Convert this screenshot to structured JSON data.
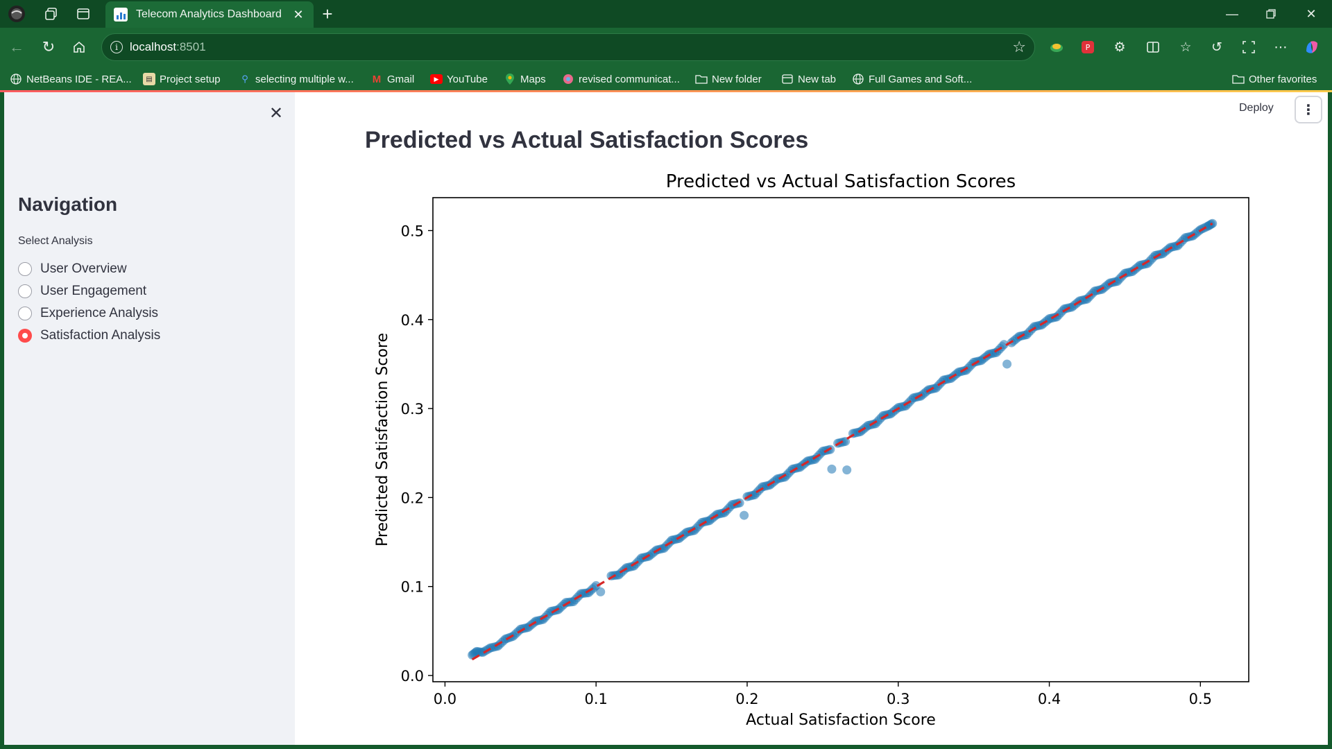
{
  "browser": {
    "tab_title": "Telecom Analytics Dashboard",
    "address_host": "localhost",
    "address_port": ":8501",
    "bookmarks": [
      {
        "label": "NetBeans IDE - REA...",
        "icon": "globe-icon"
      },
      {
        "label": "Project setup",
        "icon": "project-icon"
      },
      {
        "label": "selecting multiple w...",
        "icon": "search-icon"
      },
      {
        "label": "Gmail",
        "icon": "gmail-icon"
      },
      {
        "label": "YouTube",
        "icon": "youtube-icon"
      },
      {
        "label": "Maps",
        "icon": "maps-icon"
      },
      {
        "label": "revised communicat...",
        "icon": "web-icon"
      },
      {
        "label": "New folder",
        "icon": "folder-icon"
      },
      {
        "label": "New tab",
        "icon": "new-tab-icon"
      },
      {
        "label": "Full Games and Soft...",
        "icon": "globe-icon"
      }
    ],
    "other_favorites": "Other favorites"
  },
  "sidebar": {
    "heading": "Navigation",
    "select_label": "Select Analysis",
    "options": [
      {
        "label": "User Overview",
        "selected": false
      },
      {
        "label": "User Engagement",
        "selected": false
      },
      {
        "label": "Experience Analysis",
        "selected": false
      },
      {
        "label": "Satisfaction Analysis",
        "selected": true
      }
    ],
    "accent_color": "#ff4b4b"
  },
  "header": {
    "deploy_label": "Deploy"
  },
  "main": {
    "title": "Predicted vs Actual Satisfaction Scores"
  },
  "chart_data": {
    "type": "scatter",
    "title": "Predicted vs Actual Satisfaction Scores",
    "xlabel": "Actual Satisfaction Score",
    "ylabel": "Predicted Satisfaction Score",
    "xlim": [
      -0.008,
      0.532
    ],
    "ylim": [
      -0.007,
      0.537
    ],
    "xticks": [
      0.0,
      0.1,
      0.2,
      0.3,
      0.4,
      0.5
    ],
    "xtick_labels": [
      "0.0",
      "0.1",
      "0.2",
      "0.3",
      "0.4",
      "0.5"
    ],
    "yticks": [
      0.0,
      0.1,
      0.2,
      0.3,
      0.4,
      0.5
    ],
    "ytick_labels": [
      "0.0",
      "0.1",
      "0.2",
      "0.3",
      "0.4",
      "0.5"
    ],
    "grid": false,
    "point_color": "#1f77b4",
    "reference_line": {
      "style": "dashed",
      "color": "#d62728",
      "x": [
        0.018,
        0.508
      ],
      "y": [
        0.018,
        0.508
      ]
    },
    "series": [
      {
        "points": [
          [
            0.018,
            0.023
          ],
          [
            0.021,
            0.027
          ],
          [
            0.025,
            0.026
          ],
          [
            0.03,
            0.031
          ],
          [
            0.035,
            0.033
          ],
          [
            0.04,
            0.041
          ],
          [
            0.045,
            0.044
          ],
          [
            0.05,
            0.052
          ],
          [
            0.055,
            0.054
          ],
          [
            0.06,
            0.061
          ],
          [
            0.065,
            0.063
          ],
          [
            0.07,
            0.072
          ],
          [
            0.075,
            0.074
          ],
          [
            0.08,
            0.082
          ],
          [
            0.085,
            0.083
          ],
          [
            0.09,
            0.092
          ],
          [
            0.095,
            0.093
          ],
          [
            0.1,
            0.101
          ],
          [
            0.103,
            0.094
          ],
          [
            0.11,
            0.112
          ],
          [
            0.115,
            0.113
          ],
          [
            0.12,
            0.121
          ],
          [
            0.125,
            0.123
          ],
          [
            0.13,
            0.132
          ],
          [
            0.135,
            0.134
          ],
          [
            0.14,
            0.141
          ],
          [
            0.145,
            0.143
          ],
          [
            0.15,
            0.152
          ],
          [
            0.155,
            0.154
          ],
          [
            0.16,
            0.161
          ],
          [
            0.165,
            0.163
          ],
          [
            0.17,
            0.172
          ],
          [
            0.175,
            0.174
          ],
          [
            0.18,
            0.181
          ],
          [
            0.185,
            0.183
          ],
          [
            0.19,
            0.192
          ],
          [
            0.195,
            0.194
          ],
          [
            0.198,
            0.18
          ],
          [
            0.2,
            0.201
          ],
          [
            0.205,
            0.203
          ],
          [
            0.21,
            0.212
          ],
          [
            0.215,
            0.214
          ],
          [
            0.22,
            0.221
          ],
          [
            0.225,
            0.223
          ],
          [
            0.23,
            0.232
          ],
          [
            0.235,
            0.234
          ],
          [
            0.24,
            0.241
          ],
          [
            0.245,
            0.243
          ],
          [
            0.25,
            0.252
          ],
          [
            0.255,
            0.254
          ],
          [
            0.256,
            0.232
          ],
          [
            0.26,
            0.261
          ],
          [
            0.265,
            0.263
          ],
          [
            0.266,
            0.231
          ],
          [
            0.27,
            0.272
          ],
          [
            0.275,
            0.274
          ],
          [
            0.28,
            0.281
          ],
          [
            0.285,
            0.283
          ],
          [
            0.29,
            0.292
          ],
          [
            0.295,
            0.294
          ],
          [
            0.3,
            0.301
          ],
          [
            0.305,
            0.303
          ],
          [
            0.31,
            0.312
          ],
          [
            0.315,
            0.314
          ],
          [
            0.32,
            0.321
          ],
          [
            0.325,
            0.323
          ],
          [
            0.33,
            0.332
          ],
          [
            0.335,
            0.334
          ],
          [
            0.34,
            0.341
          ],
          [
            0.345,
            0.343
          ],
          [
            0.35,
            0.352
          ],
          [
            0.355,
            0.354
          ],
          [
            0.36,
            0.361
          ],
          [
            0.365,
            0.363
          ],
          [
            0.37,
            0.372
          ],
          [
            0.372,
            0.35
          ],
          [
            0.375,
            0.374
          ],
          [
            0.38,
            0.381
          ],
          [
            0.385,
            0.383
          ],
          [
            0.39,
            0.392
          ],
          [
            0.395,
            0.394
          ],
          [
            0.4,
            0.401
          ],
          [
            0.405,
            0.403
          ],
          [
            0.41,
            0.412
          ],
          [
            0.415,
            0.414
          ],
          [
            0.42,
            0.421
          ],
          [
            0.425,
            0.423
          ],
          [
            0.43,
            0.432
          ],
          [
            0.435,
            0.434
          ],
          [
            0.44,
            0.441
          ],
          [
            0.445,
            0.443
          ],
          [
            0.45,
            0.452
          ],
          [
            0.455,
            0.454
          ],
          [
            0.46,
            0.461
          ],
          [
            0.465,
            0.463
          ],
          [
            0.47,
            0.472
          ],
          [
            0.475,
            0.474
          ],
          [
            0.48,
            0.481
          ],
          [
            0.485,
            0.483
          ],
          [
            0.49,
            0.492
          ],
          [
            0.495,
            0.494
          ],
          [
            0.5,
            0.501
          ],
          [
            0.505,
            0.505
          ],
          [
            0.508,
            0.508
          ]
        ]
      }
    ]
  }
}
